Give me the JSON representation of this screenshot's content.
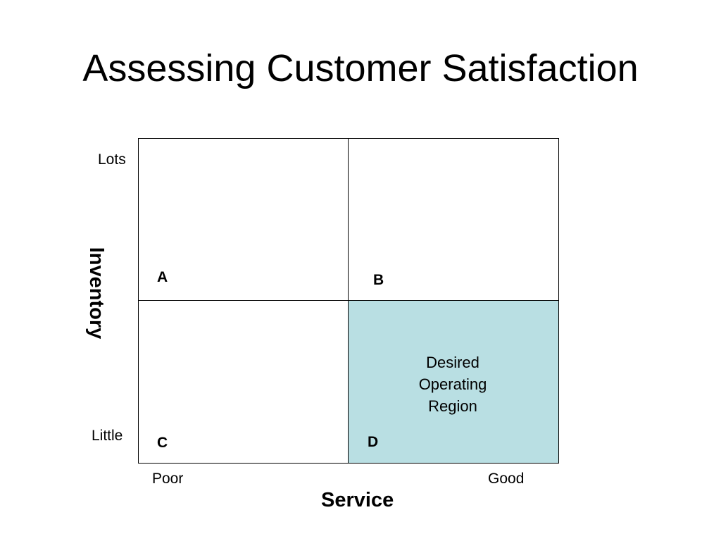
{
  "title": "Assessing Customer Satisfaction",
  "colors": {
    "desired_region_fill": "#b9dfe3",
    "border": "#000000"
  },
  "y_axis": {
    "title": "Inventory",
    "high_label": "Lots",
    "low_label": "Little"
  },
  "x_axis": {
    "title": "Service",
    "low_label": "Poor",
    "high_label": "Good"
  },
  "quadrants": {
    "a": {
      "letter": "A"
    },
    "b": {
      "letter": "B"
    },
    "c": {
      "letter": "C"
    },
    "d": {
      "letter": "D",
      "region_lines": [
        "Desired",
        "Operating",
        "Region"
      ]
    }
  }
}
